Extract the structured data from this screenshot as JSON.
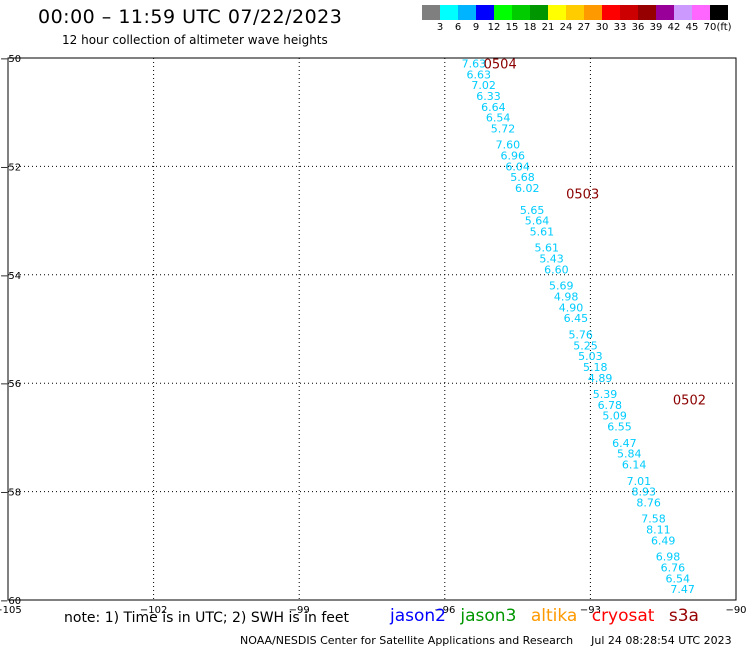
{
  "header": {
    "title": "00:00 – 11:59 UTC 07/22/2023",
    "subtitle": "12 hour collection of altimeter wave heights"
  },
  "colorbar": {
    "colors": [
      "#7f7f7f",
      "#00ffff",
      "#00b4ff",
      "#0000ff",
      "#00ff00",
      "#00cc00",
      "#009600",
      "#ffff00",
      "#ffcc00",
      "#ff9900",
      "#ff0000",
      "#cc0000",
      "#960000",
      "#990099",
      "#cc99ff",
      "#ff66ff",
      "#000000"
    ],
    "labels": [
      "3",
      "6",
      "9",
      "12",
      "15",
      "18",
      "21",
      "24",
      "27",
      "30",
      "33",
      "36",
      "39",
      "42",
      "45",
      "70"
    ],
    "unit": "(ft)"
  },
  "chart_data": {
    "type": "scatter",
    "xlim": [
      -105,
      -90
    ],
    "ylim": [
      -60,
      -50
    ],
    "x_ticks": [
      -105,
      -102,
      -99,
      -96,
      -93,
      -90
    ],
    "y_ticks": [
      -50,
      -52,
      -54,
      -56,
      -58,
      -60
    ],
    "x_tick_labels": [
      "−105",
      "−102",
      "−99",
      "−96",
      "−93",
      "−90"
    ],
    "y_tick_labels": [
      "−50",
      "−52",
      "−54",
      "−56",
      "−58",
      "−60"
    ],
    "grid": true,
    "marker_color": "#00ccff",
    "points": [
      {
        "lon": -95.4,
        "lat": -50.1,
        "swh": "7.63"
      },
      {
        "lon": -95.3,
        "lat": -50.3,
        "swh": "6.63"
      },
      {
        "lon": -95.2,
        "lat": -50.5,
        "swh": "7.02"
      },
      {
        "lon": -95.1,
        "lat": -50.7,
        "swh": "6.33"
      },
      {
        "lon": -95.0,
        "lat": -50.9,
        "swh": "6.64"
      },
      {
        "lon": -94.9,
        "lat": -51.1,
        "swh": "6.54"
      },
      {
        "lon": -94.8,
        "lat": -51.3,
        "swh": "5.72"
      },
      {
        "lon": -94.7,
        "lat": -51.6,
        "swh": "7.60"
      },
      {
        "lon": -94.6,
        "lat": -51.8,
        "swh": "6.96"
      },
      {
        "lon": -94.5,
        "lat": -52.0,
        "swh": "6.04"
      },
      {
        "lon": -94.4,
        "lat": -52.2,
        "swh": "5.68"
      },
      {
        "lon": -94.3,
        "lat": -52.4,
        "swh": "6.02"
      },
      {
        "lon": -94.2,
        "lat": -52.8,
        "swh": "5.65"
      },
      {
        "lon": -94.1,
        "lat": -53.0,
        "swh": "5.64"
      },
      {
        "lon": -94.0,
        "lat": -53.2,
        "swh": "5.61"
      },
      {
        "lon": -93.9,
        "lat": -53.5,
        "swh": "5.61"
      },
      {
        "lon": -93.8,
        "lat": -53.7,
        "swh": "5.43"
      },
      {
        "lon": -93.7,
        "lat": -53.9,
        "swh": "6.60"
      },
      {
        "lon": -93.6,
        "lat": -54.2,
        "swh": "5.69"
      },
      {
        "lon": -93.5,
        "lat": -54.4,
        "swh": "4.98"
      },
      {
        "lon": -93.4,
        "lat": -54.6,
        "swh": "4.90"
      },
      {
        "lon": -93.3,
        "lat": -54.8,
        "swh": "6.45"
      },
      {
        "lon": -93.2,
        "lat": -55.1,
        "swh": "5.76"
      },
      {
        "lon": -93.1,
        "lat": -55.3,
        "swh": "5.25"
      },
      {
        "lon": -93.0,
        "lat": -55.5,
        "swh": "5.03"
      },
      {
        "lon": -92.9,
        "lat": -55.7,
        "swh": "5.18"
      },
      {
        "lon": -92.8,
        "lat": -55.9,
        "swh": "4.89"
      },
      {
        "lon": -92.7,
        "lat": -56.2,
        "swh": "5.39"
      },
      {
        "lon": -92.6,
        "lat": -56.4,
        "swh": "6.78"
      },
      {
        "lon": -92.5,
        "lat": -56.6,
        "swh": "5.09"
      },
      {
        "lon": -92.4,
        "lat": -56.8,
        "swh": "6.55"
      },
      {
        "lon": -92.3,
        "lat": -57.1,
        "swh": "6.47"
      },
      {
        "lon": -92.2,
        "lat": -57.3,
        "swh": "5.84"
      },
      {
        "lon": -92.1,
        "lat": -57.5,
        "swh": "6.14"
      },
      {
        "lon": -92.0,
        "lat": -57.8,
        "swh": "7.01"
      },
      {
        "lon": -91.9,
        "lat": -58.0,
        "swh": "8.93"
      },
      {
        "lon": -91.8,
        "lat": -58.2,
        "swh": "8.76"
      },
      {
        "lon": -91.7,
        "lat": -58.5,
        "swh": "7.58"
      },
      {
        "lon": -91.6,
        "lat": -58.7,
        "swh": "8.11"
      },
      {
        "lon": -91.5,
        "lat": -58.9,
        "swh": "6.49"
      },
      {
        "lon": -91.4,
        "lat": -59.2,
        "swh": "6.98"
      },
      {
        "lon": -91.3,
        "lat": -59.4,
        "swh": "6.76"
      },
      {
        "lon": -91.2,
        "lat": -59.6,
        "swh": "6.54"
      },
      {
        "lon": -91.1,
        "lat": -59.8,
        "swh": "7.47"
      }
    ],
    "time_marks": [
      {
        "lon": -95.2,
        "lat": -50.1,
        "label": "0504"
      },
      {
        "lon": -93.5,
        "lat": -52.5,
        "label": "0503"
      },
      {
        "lon": -91.3,
        "lat": -56.3,
        "label": "0502"
      }
    ],
    "time_mark_color": "#8b0000"
  },
  "footer": {
    "note": "note: 1) Time is in UTC; 2) SWH is in feet",
    "satellites": [
      {
        "name": "jason2",
        "color": "#0000ff"
      },
      {
        "name": "jason3",
        "color": "#009600"
      },
      {
        "name": "altika",
        "color": "#ff9900"
      },
      {
        "name": "cryosat",
        "color": "#ff0000"
      },
      {
        "name": "s3a",
        "color": "#960000"
      }
    ],
    "credit": "NOAA/NESDIS Center for Satellite Applications and Research",
    "timestamp": "Jul 24 08:28:54 UTC 2023"
  }
}
